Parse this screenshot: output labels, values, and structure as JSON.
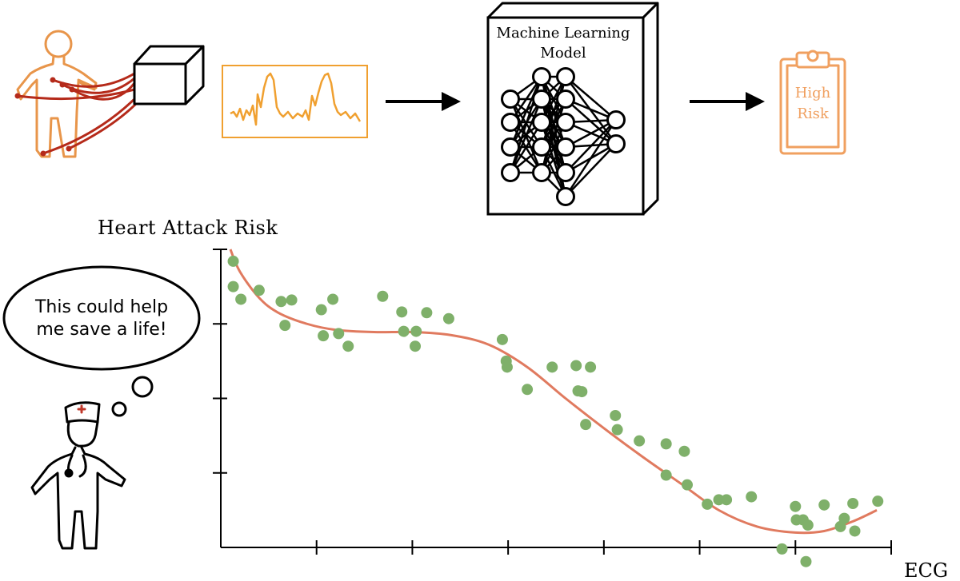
{
  "pipeline": {
    "model_title_line1": "Machine Learning",
    "model_title_line2": "Model",
    "result_line1": "High",
    "result_line2": "Risk"
  },
  "speech": {
    "line1": "This could help",
    "line2": "me save a life!"
  },
  "colors": {
    "patient": "#e8954a",
    "electrode_wire": "#b52a1a",
    "ecg_trace": "#f0a030",
    "result_clipboard": "#f0a060",
    "fit_curve": "#e07a5f",
    "points": "#7fb06a",
    "ink": "#000000"
  },
  "chart_data": {
    "type": "scatter",
    "title": "",
    "ylabel": "Heart Attack Risk",
    "xlabel": "ECG",
    "xlim": [
      0,
      7
    ],
    "ylim": [
      0,
      4
    ],
    "x_ticks": [
      1,
      2,
      3,
      4,
      5,
      6,
      7
    ],
    "y_ticks": [
      1,
      2,
      3,
      4
    ],
    "tick_labels_shown": false,
    "grid": false,
    "points": [
      [
        0.13,
        3.84
      ],
      [
        0.13,
        3.5
      ],
      [
        0.21,
        3.33
      ],
      [
        0.4,
        3.45
      ],
      [
        0.63,
        3.3
      ],
      [
        0.74,
        3.32
      ],
      [
        0.67,
        2.98
      ],
      [
        1.05,
        3.19
      ],
      [
        1.17,
        3.33
      ],
      [
        1.07,
        2.84
      ],
      [
        1.23,
        2.87
      ],
      [
        1.33,
        2.7
      ],
      [
        1.69,
        3.37
      ],
      [
        1.89,
        3.16
      ],
      [
        1.91,
        2.9
      ],
      [
        2.03,
        2.7
      ],
      [
        2.04,
        2.9
      ],
      [
        2.15,
        3.15
      ],
      [
        2.38,
        3.07
      ],
      [
        2.94,
        2.79
      ],
      [
        2.98,
        2.5
      ],
      [
        2.99,
        2.42
      ],
      [
        3.2,
        2.12
      ],
      [
        3.46,
        2.42
      ],
      [
        3.71,
        2.44
      ],
      [
        3.86,
        2.42
      ],
      [
        3.73,
        2.1
      ],
      [
        3.77,
        2.09
      ],
      [
        3.81,
        1.65
      ],
      [
        4.12,
        1.77
      ],
      [
        4.14,
        1.58
      ],
      [
        4.37,
        1.43
      ],
      [
        4.65,
        1.39
      ],
      [
        4.65,
        0.97
      ],
      [
        4.84,
        1.29
      ],
      [
        4.87,
        0.84
      ],
      [
        5.08,
        0.58
      ],
      [
        5.2,
        0.64
      ],
      [
        5.28,
        0.64
      ],
      [
        5.54,
        0.68
      ],
      [
        5.86,
        -0.02
      ],
      [
        6.0,
        0.55
      ],
      [
        6.01,
        0.37
      ],
      [
        6.08,
        0.37
      ],
      [
        6.13,
        0.3
      ],
      [
        6.11,
        -0.19
      ],
      [
        6.3,
        0.57
      ],
      [
        6.47,
        0.28
      ],
      [
        6.51,
        0.39
      ],
      [
        6.6,
        0.59
      ],
      [
        6.62,
        0.22
      ],
      [
        6.86,
        0.62
      ]
    ],
    "fit_curve": [
      [
        0.1,
        4.0
      ],
      [
        0.2,
        3.7
      ],
      [
        0.4,
        3.35
      ],
      [
        0.6,
        3.15
      ],
      [
        0.9,
        3.0
      ],
      [
        1.2,
        2.92
      ],
      [
        1.6,
        2.89
      ],
      [
        2.0,
        2.89
      ],
      [
        2.4,
        2.85
      ],
      [
        2.8,
        2.72
      ],
      [
        3.2,
        2.42
      ],
      [
        3.6,
        2.0
      ],
      [
        4.0,
        1.6
      ],
      [
        4.4,
        1.22
      ],
      [
        4.8,
        0.86
      ],
      [
        5.2,
        0.5
      ],
      [
        5.6,
        0.28
      ],
      [
        6.0,
        0.2
      ],
      [
        6.3,
        0.22
      ],
      [
        6.6,
        0.35
      ],
      [
        6.85,
        0.5
      ]
    ]
  }
}
